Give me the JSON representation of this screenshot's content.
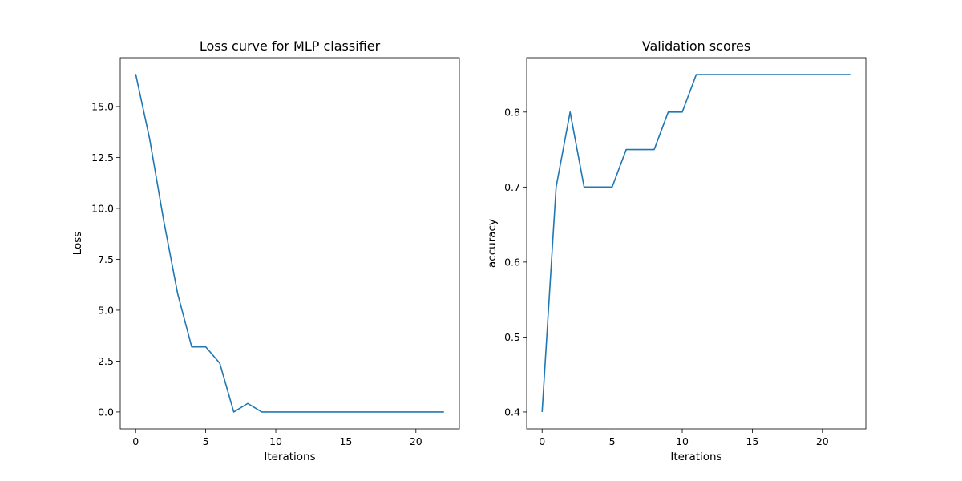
{
  "chart_data": [
    {
      "type": "line",
      "title": "Loss curve for MLP classifier",
      "xlabel": "Iterations",
      "ylabel": "Loss",
      "xlim": [
        -1.1,
        23.1
      ],
      "ylim": [
        -0.83,
        17.4
      ],
      "xticks": [
        0,
        5,
        10,
        15,
        20
      ],
      "yticks": [
        0.0,
        2.5,
        5.0,
        7.5,
        10.0,
        12.5,
        15.0
      ],
      "ytick_labels": [
        "0.0",
        "2.5",
        "5.0",
        "7.5",
        "10.0",
        "12.5",
        "15.0"
      ],
      "grid": false,
      "series": [
        {
          "color": "#1f77b4",
          "x": [
            0,
            1,
            2,
            3,
            4,
            5,
            6,
            7,
            8,
            9,
            10,
            11,
            12,
            13,
            14,
            15,
            16,
            17,
            18,
            19,
            20,
            21,
            22
          ],
          "y": [
            16.6,
            13.4,
            9.4,
            5.8,
            3.2,
            3.2,
            2.4,
            0.0,
            0.42,
            0.0,
            0.0,
            0.0,
            0.0,
            0.0,
            0.0,
            0.0,
            0.0,
            0.0,
            0.0,
            0.0,
            0.0,
            0.0,
            0.0
          ]
        }
      ]
    },
    {
      "type": "line",
      "title": "Validation scores",
      "xlabel": "Iterations",
      "ylabel": "accuracy",
      "xlim": [
        -1.1,
        23.1
      ],
      "ylim": [
        0.3775,
        0.8725
      ],
      "xticks": [
        0,
        5,
        10,
        15,
        20
      ],
      "yticks": [
        0.4,
        0.5,
        0.6,
        0.7,
        0.8
      ],
      "ytick_labels": [
        "0.4",
        "0.5",
        "0.6",
        "0.7",
        "0.8"
      ],
      "grid": false,
      "series": [
        {
          "color": "#1f77b4",
          "x": [
            0,
            1,
            2,
            3,
            4,
            5,
            6,
            7,
            8,
            9,
            10,
            11,
            12,
            13,
            14,
            15,
            16,
            17,
            18,
            19,
            20,
            21,
            22
          ],
          "y": [
            0.4,
            0.7,
            0.8,
            0.7,
            0.7,
            0.7,
            0.75,
            0.75,
            0.75,
            0.8,
            0.8,
            0.85,
            0.85,
            0.85,
            0.85,
            0.85,
            0.85,
            0.85,
            0.85,
            0.85,
            0.85,
            0.85,
            0.85
          ]
        }
      ]
    }
  ]
}
